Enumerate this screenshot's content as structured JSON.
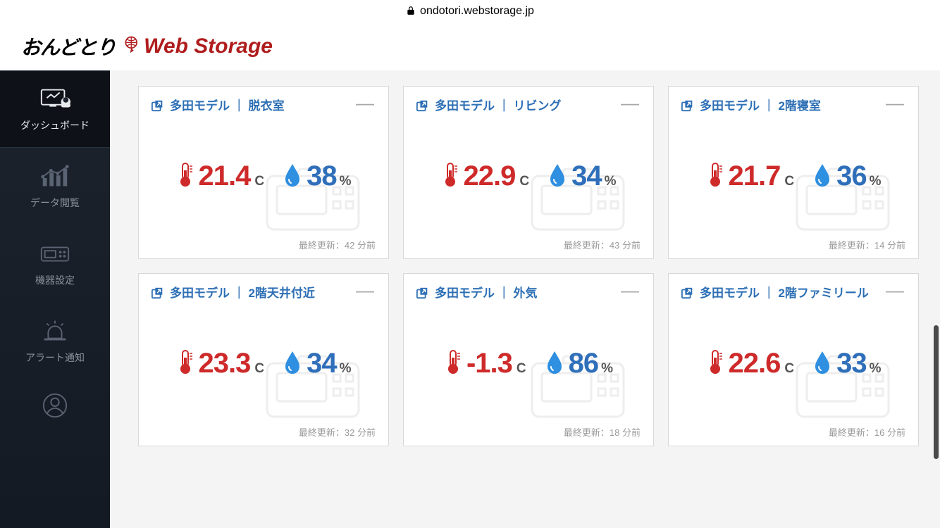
{
  "browser": {
    "url": "ondotori.webstorage.jp"
  },
  "header": {
    "logo_jp": "おんどとり",
    "logo_web": "Web Storage"
  },
  "sidebar": {
    "items": [
      {
        "key": "dashboard",
        "label": "ダッシュボード",
        "active": true
      },
      {
        "key": "data",
        "label": "データ閲覧",
        "active": false
      },
      {
        "key": "device",
        "label": "機器設定",
        "active": false
      },
      {
        "key": "alert",
        "label": "アラート通知",
        "active": false
      },
      {
        "key": "profile",
        "label": "",
        "active": false
      }
    ]
  },
  "cards_common": {
    "temp_unit": "C",
    "hum_unit": "%",
    "update_prefix": "最終更新："
  },
  "colors": {
    "temp": "#ce2a2a",
    "hum": "#2f6fba",
    "link": "#2d6fb5",
    "sidebar_bg": "#1c232d",
    "sidebar_active_bg": "#0e1218",
    "card_border": "#d8d8d8",
    "muted_text": "#9a9a9a"
  },
  "cards": [
    {
      "title": "多田モデル ｜ 脱衣室",
      "temp": "21.4",
      "hum": "38",
      "updated": "42 分前"
    },
    {
      "title": "多田モデル ｜ リビング",
      "temp": "22.9",
      "hum": "34",
      "updated": "43 分前"
    },
    {
      "title": "多田モデル ｜ 2階寝室",
      "temp": "21.7",
      "hum": "36",
      "updated": "14 分前"
    },
    {
      "title": "多田モデル ｜ 2階天井付近",
      "temp": "23.3",
      "hum": "34",
      "updated": "32 分前"
    },
    {
      "title": "多田モデル ｜ 外気",
      "temp": "-1.3",
      "hum": "86",
      "updated": "18 分前"
    },
    {
      "title": "多田モデル ｜ 2階ファミリール",
      "temp": "22.6",
      "hum": "33",
      "updated": "16 分前"
    }
  ]
}
